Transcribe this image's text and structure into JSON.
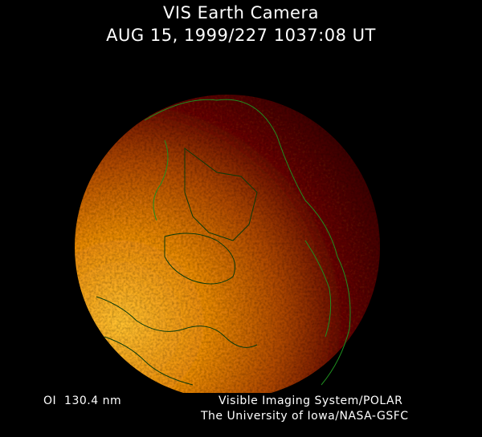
{
  "header": {
    "title": "VIS Earth Camera",
    "subtitle": "AUG 15, 1999/227 1037:08 UT"
  },
  "footer": {
    "band": "OI  130.4 nm",
    "credit_line1": "Visible Imaging System/POLAR",
    "credit_line2": "The University of Iowa/NASA-GSFC"
  },
  "colors": {
    "background": "#000000",
    "bright_emission": "#ffb020",
    "dark_emission": "#3a0000",
    "coastline": "#1f8f1f",
    "text": "#ffffff"
  }
}
